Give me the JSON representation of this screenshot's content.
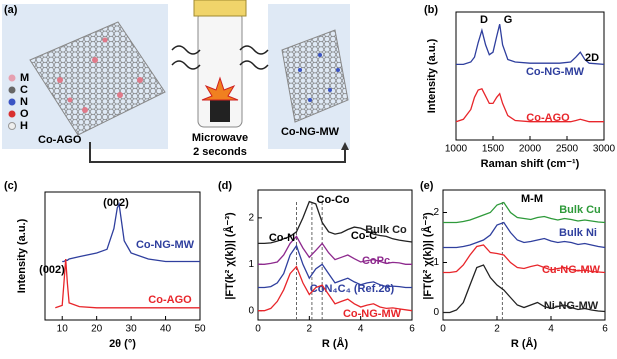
{
  "schematic": {
    "panel_label": "(a)",
    "legend": [
      "M",
      "C",
      "N",
      "O",
      "H"
    ],
    "left_label": "Co-AGO",
    "center_label": [
      "Microwave",
      "2 seconds"
    ],
    "right_label": "Co-NG-MW"
  },
  "chart_data": [
    {
      "type": "line",
      "panel_label": "(b)",
      "xlabel": "Raman shift (cm⁻¹)",
      "ylabel": "Intensity (a.u.)",
      "x": [
        1000,
        1100,
        1200,
        1250,
        1300,
        1350,
        1400,
        1450,
        1500,
        1550,
        1590,
        1630,
        1700,
        1800,
        2000,
        2200,
        2400,
        2550,
        2620,
        2680,
        2740,
        2800,
        3000
      ],
      "series": [
        {
          "name": "Co-NG-MW",
          "color": "#2f3f9e",
          "values": [
            0.62,
            0.62,
            0.64,
            0.68,
            0.8,
            0.9,
            0.78,
            0.7,
            0.72,
            0.85,
            0.95,
            0.78,
            0.66,
            0.64,
            0.63,
            0.63,
            0.63,
            0.64,
            0.68,
            0.72,
            0.66,
            0.63,
            0.62
          ]
        },
        {
          "name": "Co-AGO",
          "color": "#e8262b",
          "values": [
            0.15,
            0.17,
            0.25,
            0.35,
            0.41,
            0.42,
            0.36,
            0.3,
            0.3,
            0.35,
            0.38,
            0.3,
            0.2,
            0.16,
            0.15,
            0.15,
            0.15,
            0.15,
            0.16,
            0.17,
            0.16,
            0.15,
            0.15
          ]
        }
      ],
      "annotations": [
        "D",
        "G",
        "2D"
      ],
      "xlim": [
        1000,
        3000
      ],
      "xticks": [
        1000,
        1500,
        2000,
        2500,
        3000
      ],
      "ylim": [
        0,
        1.05
      ]
    },
    {
      "type": "line",
      "panel_label": "(c)",
      "xlabel": "2θ (°)",
      "ylabel": "Intensity (a.u.)",
      "x": [
        5,
        8,
        10,
        10.5,
        11,
        11.5,
        12,
        15,
        20,
        23,
        25,
        26,
        26.5,
        27,
        28,
        30,
        35,
        40,
        45,
        50
      ],
      "series": [
        {
          "name": "Co-NG-MW",
          "color": "#2f3f9e",
          "values": [
            null,
            null,
            0.48,
            0.48,
            0.49,
            0.49,
            0.5,
            0.52,
            0.55,
            0.58,
            0.75,
            0.92,
            0.95,
            0.85,
            0.65,
            0.55,
            0.5,
            0.48,
            0.48,
            0.48
          ]
        },
        {
          "name": "Co-AGO",
          "color": "#e8262b",
          "values": [
            null,
            0.1,
            0.12,
            0.3,
            0.5,
            0.3,
            0.14,
            0.11,
            0.1,
            0.1,
            0.1,
            0.1,
            0.1,
            0.1,
            0.1,
            0.1,
            0.1,
            0.1,
            0.1,
            0.1
          ]
        }
      ],
      "annotations": [
        "(002)",
        "(002)"
      ],
      "xlim": [
        5,
        50
      ],
      "xticks": [
        10,
        20,
        30,
        40,
        50
      ],
      "ylim": [
        0,
        1.05
      ]
    },
    {
      "type": "line",
      "panel_label": "(d)",
      "xlabel": "R (Å)",
      "ylabel": "|FT(k² χ(k))| (Å⁻³)",
      "x": [
        0,
        0.25,
        0.5,
        0.75,
        1,
        1.25,
        1.5,
        1.75,
        2,
        2.25,
        2.5,
        2.75,
        3,
        3.25,
        3.5,
        3.75,
        4,
        4.25,
        4.5,
        4.75,
        5,
        5.25,
        5.5,
        5.75,
        6
      ],
      "series": [
        {
          "name": "Bulk Co",
          "color": "#222222",
          "values": [
            1.45,
            1.45,
            1.46,
            1.5,
            1.55,
            1.6,
            1.7,
            2.0,
            2.35,
            2.3,
            1.9,
            1.7,
            1.65,
            1.68,
            1.75,
            1.8,
            1.78,
            1.72,
            1.65,
            1.62,
            1.6,
            1.55,
            1.52,
            1.5,
            1.48
          ]
        },
        {
          "name": "CoPc",
          "color": "#8e2a8e",
          "values": [
            1.0,
            1.0,
            1.02,
            1.05,
            1.2,
            1.45,
            1.6,
            1.35,
            1.15,
            1.3,
            1.45,
            1.25,
            1.1,
            1.15,
            1.2,
            1.12,
            1.05,
            1.08,
            1.1,
            1.06,
            1.02,
            1.04,
            1.03,
            1.0,
            1.0
          ]
        },
        {
          "name": "CoN₄C₄ (Ref.26)",
          "color": "#2f3f9e",
          "values": [
            0.5,
            0.5,
            0.52,
            0.6,
            0.8,
            1.2,
            1.4,
            1.0,
            0.7,
            0.9,
            1.0,
            0.8,
            0.6,
            0.65,
            0.7,
            0.62,
            0.56,
            0.6,
            0.62,
            0.56,
            0.52,
            0.53,
            0.52,
            0.5,
            0.5
          ]
        },
        {
          "name": "Co-NG-MW",
          "color": "#e8262b",
          "values": [
            0,
            0,
            0.05,
            0.2,
            0.45,
            0.8,
            0.95,
            0.6,
            0.35,
            0.5,
            0.55,
            0.35,
            0.15,
            0.2,
            0.25,
            0.15,
            0.08,
            0.12,
            0.15,
            0.08,
            0.05,
            0.06,
            0.04,
            0.02,
            0
          ]
        }
      ],
      "annotations": [
        "Co-N",
        "Co-Co",
        "Co-C"
      ],
      "reference_lines": [
        1.5,
        2.1,
        2.5
      ],
      "xlim": [
        0,
        6
      ],
      "xticks": [
        0,
        2,
        4,
        6
      ],
      "ylim": [
        -0.2,
        2.6
      ],
      "yticks": [
        0,
        1,
        2
      ]
    },
    {
      "type": "line",
      "panel_label": "(e)",
      "xlabel": "R (Å)",
      "ylabel": "|FT(k² χ(k))| (Å⁻³)",
      "x": [
        0,
        0.25,
        0.5,
        0.75,
        1,
        1.25,
        1.5,
        1.75,
        2,
        2.25,
        2.5,
        2.75,
        3,
        3.25,
        3.5,
        3.75,
        4,
        4.25,
        4.5,
        4.75,
        5,
        5.25,
        5.5,
        5.75,
        6
      ],
      "series": [
        {
          "name": "Bulk Cu",
          "color": "#2e9a3a",
          "values": [
            1.8,
            1.8,
            1.8,
            1.82,
            1.85,
            1.9,
            1.95,
            2.0,
            2.15,
            2.2,
            2.0,
            1.9,
            1.88,
            1.86,
            1.9,
            1.92,
            1.88,
            1.85,
            1.88,
            1.86,
            1.83,
            1.85,
            1.83,
            1.81,
            1.8
          ]
        },
        {
          "name": "Bulk Ni",
          "color": "#2f3f9e",
          "values": [
            1.3,
            1.3,
            1.3,
            1.32,
            1.35,
            1.4,
            1.45,
            1.55,
            1.75,
            1.8,
            1.6,
            1.45,
            1.4,
            1.42,
            1.45,
            1.48,
            1.43,
            1.4,
            1.42,
            1.4,
            1.36,
            1.38,
            1.35,
            1.32,
            1.3
          ]
        },
        {
          "name": "Cu-NG-MW",
          "color": "#e8262b",
          "values": [
            0.8,
            0.8,
            0.82,
            0.95,
            1.15,
            1.32,
            1.35,
            1.2,
            1.18,
            1.15,
            1.0,
            0.9,
            0.88,
            0.92,
            0.95,
            0.9,
            0.85,
            0.88,
            0.9,
            0.86,
            0.83,
            0.85,
            0.82,
            0.81,
            0.8
          ]
        },
        {
          "name": "Ni-NG-MW",
          "color": "#222222",
          "values": [
            0,
            0,
            0.05,
            0.2,
            0.55,
            0.9,
            0.95,
            0.7,
            0.55,
            0.45,
            0.3,
            0.15,
            0.1,
            0.15,
            0.2,
            0.12,
            0.08,
            0.12,
            0.15,
            0.1,
            0.06,
            0.08,
            0.05,
            0.03,
            0.02
          ]
        }
      ],
      "annotations": [
        "M-M"
      ],
      "reference_lines": [
        2.2
      ],
      "xlim": [
        0,
        6
      ],
      "xticks": [
        0,
        2,
        4,
        6
      ],
      "ylim": [
        -0.15,
        2.45
      ],
      "yticks": [
        0,
        1,
        2
      ]
    }
  ]
}
